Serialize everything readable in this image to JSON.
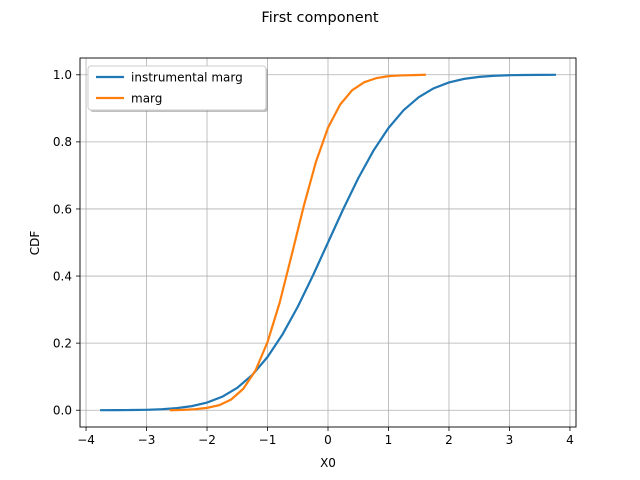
{
  "chart_data": {
    "type": "line",
    "title": "First component",
    "xlabel": "X0",
    "ylabel": "CDF",
    "xlim": [
      -4.1,
      4.1
    ],
    "ylim": [
      -0.05,
      1.05
    ],
    "xticks": [
      -4,
      -3,
      -2,
      -1,
      0,
      1,
      2,
      3,
      4
    ],
    "xtick_labels": [
      "−4",
      "−3",
      "−2",
      "−1",
      "0",
      "1",
      "2",
      "3",
      "4"
    ],
    "yticks": [
      0.0,
      0.2,
      0.4,
      0.6,
      0.8,
      1.0
    ],
    "ytick_labels": [
      "0.0",
      "0.2",
      "0.4",
      "0.6",
      "0.8",
      "1.0"
    ],
    "grid": true,
    "legend_position": "top-left",
    "series": [
      {
        "name": "instrumental marg",
        "color": "#1f77b4",
        "x": [
          -3.75,
          -3.5,
          -3.25,
          -3.0,
          -2.75,
          -2.5,
          -2.25,
          -2.0,
          -1.75,
          -1.5,
          -1.25,
          -1.0,
          -0.75,
          -0.5,
          -0.25,
          0.0,
          0.25,
          0.5,
          0.75,
          1.0,
          1.25,
          1.5,
          1.75,
          2.0,
          2.25,
          2.5,
          2.75,
          3.0,
          3.25,
          3.5,
          3.75
        ],
        "y": [
          0.0001,
          0.0002,
          0.0006,
          0.0013,
          0.003,
          0.0062,
          0.0122,
          0.0228,
          0.0401,
          0.0668,
          0.1056,
          0.1587,
          0.2266,
          0.3085,
          0.4013,
          0.5,
          0.5987,
          0.6915,
          0.7734,
          0.8413,
          0.8944,
          0.9332,
          0.9599,
          0.9772,
          0.9878,
          0.9938,
          0.997,
          0.9987,
          0.9994,
          0.9998,
          0.9999
        ]
      },
      {
        "name": "marg",
        "color": "#ff7f0e",
        "x": [
          -2.6,
          -2.4,
          -2.2,
          -2.0,
          -1.8,
          -1.6,
          -1.4,
          -1.2,
          -1.0,
          -0.8,
          -0.6,
          -0.4,
          -0.2,
          0.0,
          0.2,
          0.4,
          0.6,
          0.8,
          1.0,
          1.2,
          1.4,
          1.6
        ],
        "y": [
          0.0,
          0.001,
          0.003,
          0.007,
          0.015,
          0.032,
          0.064,
          0.118,
          0.203,
          0.32,
          0.463,
          0.609,
          0.74,
          0.842,
          0.911,
          0.954,
          0.978,
          0.99,
          0.996,
          0.998,
          0.999,
          1.0
        ]
      }
    ]
  }
}
